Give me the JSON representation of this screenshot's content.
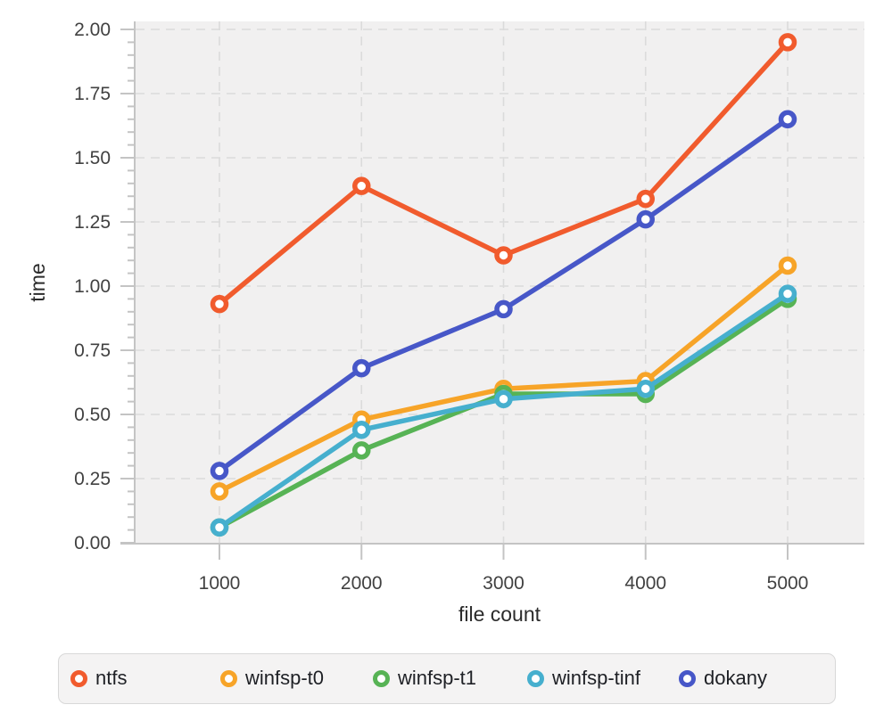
{
  "chart_data": {
    "type": "line",
    "x": [
      1000,
      2000,
      3000,
      4000,
      5000
    ],
    "xtick_labels": [
      "1000",
      "2000",
      "3000",
      "4000",
      "5000"
    ],
    "ytick_labels": [
      "0.00",
      "0.25",
      "0.50",
      "0.75",
      "1.00",
      "1.25",
      "1.50",
      "1.75",
      "2.00"
    ],
    "xlabel": "file count",
    "ylabel": "time",
    "ylim": [
      0,
      2.0
    ],
    "ytick_step": 0.25,
    "yminor_step": 0.05,
    "grid": true,
    "legend_position": "bottom",
    "marker": "open-circle",
    "series": [
      {
        "name": "ntfs",
        "color": "#f15b2d",
        "values": [
          0.93,
          1.39,
          1.12,
          1.34,
          1.95
        ]
      },
      {
        "name": "winfsp-t0",
        "color": "#f7a428",
        "values": [
          0.2,
          0.48,
          0.6,
          0.63,
          1.08
        ]
      },
      {
        "name": "winfsp-t1",
        "color": "#57b355",
        "values": [
          0.06,
          0.36,
          0.58,
          0.58,
          0.95
        ]
      },
      {
        "name": "winfsp-tinf",
        "color": "#46afce",
        "values": [
          0.06,
          0.44,
          0.56,
          0.6,
          0.97
        ]
      },
      {
        "name": "dokany",
        "color": "#4757c8",
        "values": [
          0.28,
          0.68,
          0.91,
          1.26,
          1.65
        ]
      }
    ]
  },
  "style": {
    "plot_bg": "#f1f0f0",
    "grid_color": "#dbdbdb",
    "axis_color": "#c4c4c4",
    "tick_text_color": "#414141",
    "title_text_color": "#2b2b2b",
    "legend_bg": "#f4f3f3",
    "legend_border": "#d8d8d8",
    "marker_fill": "#ffffff"
  }
}
